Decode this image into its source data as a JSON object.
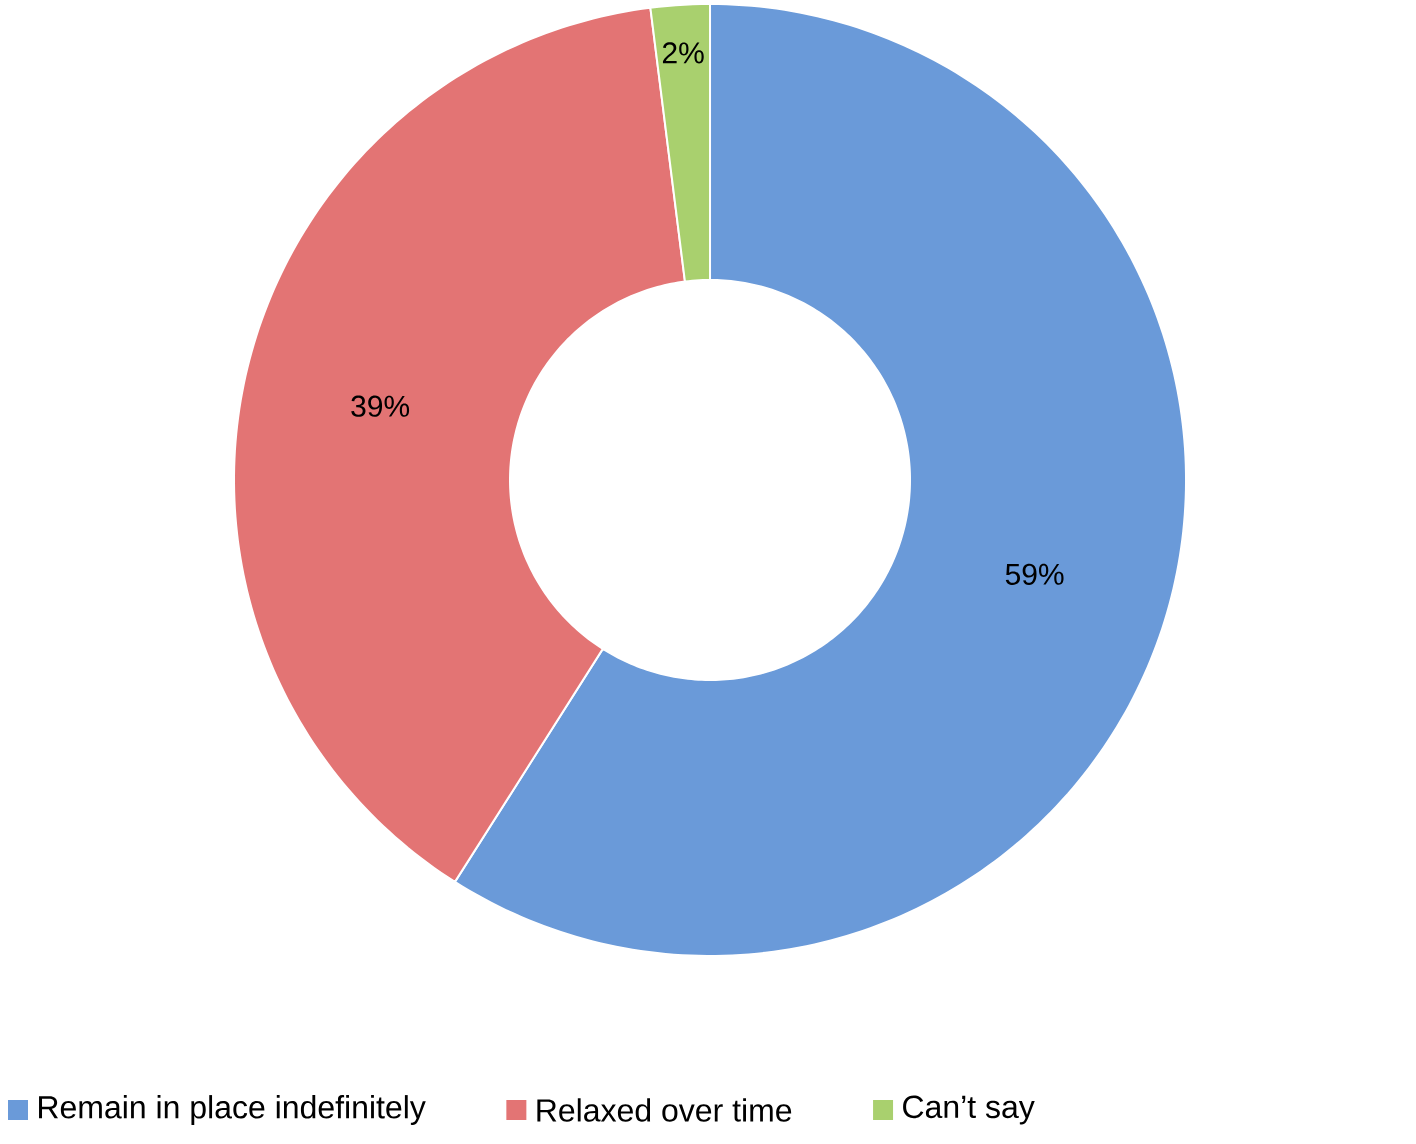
{
  "chart_data": {
    "type": "donut",
    "categories": [
      "Remain in place indefinitely",
      "Relaxed over time",
      "Can’t say"
    ],
    "values": [
      59,
      39,
      2
    ],
    "colors": [
      "#6a9ad9",
      "#e37474",
      "#a9d06e"
    ],
    "value_labels": [
      "59%",
      "39%",
      "2%"
    ],
    "legend": "bottom"
  }
}
